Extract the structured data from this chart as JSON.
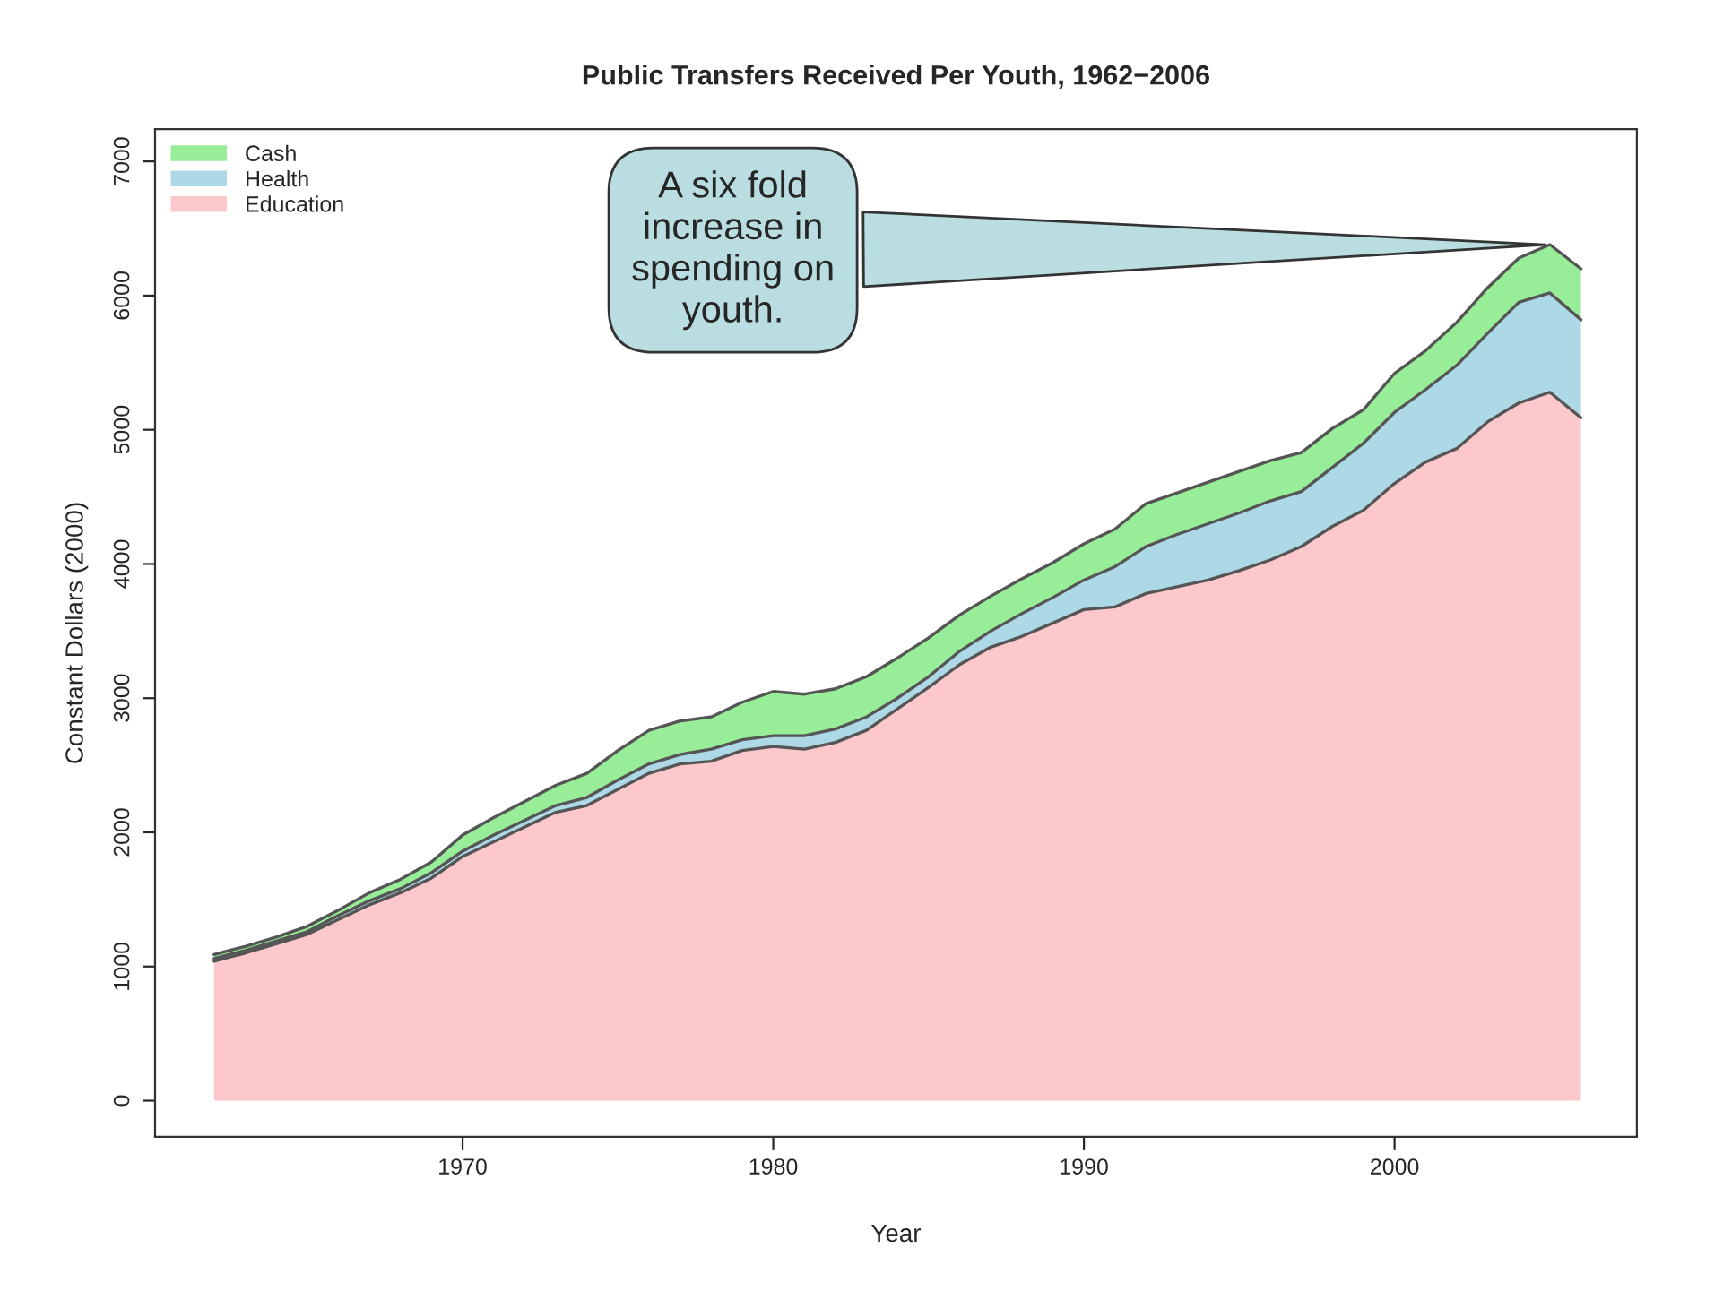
{
  "chart_data": {
    "type": "area",
    "stacked": true,
    "title": "Public Transfers Received Per Youth, 1962−2006",
    "xlabel": "Year",
    "ylabel": "Constant Dollars (2000)",
    "x": [
      1962,
      1963,
      1964,
      1965,
      1966,
      1967,
      1968,
      1969,
      1970,
      1971,
      1972,
      1973,
      1974,
      1975,
      1976,
      1977,
      1978,
      1979,
      1980,
      1981,
      1982,
      1983,
      1984,
      1985,
      1986,
      1987,
      1988,
      1989,
      1990,
      1991,
      1992,
      1993,
      1994,
      1995,
      1996,
      1997,
      1998,
      1999,
      2000,
      2001,
      2002,
      2003,
      2004,
      2005,
      2006
    ],
    "series": [
      {
        "name": "Education",
        "color": "#fcc8cb",
        "values": [
          1040,
          1100,
          1170,
          1240,
          1350,
          1460,
          1550,
          1660,
          1820,
          1930,
          2040,
          2150,
          2200,
          2320,
          2440,
          2510,
          2530,
          2610,
          2640,
          2620,
          2670,
          2760,
          2920,
          3080,
          3250,
          3380,
          3460,
          3560,
          3660,
          3680,
          3780,
          3830,
          3880,
          3950,
          4030,
          4130,
          4280,
          4400,
          4600,
          4760,
          4860,
          5060,
          5200,
          5280,
          5090
        ]
      },
      {
        "name": "Health",
        "color": "#add8e6",
        "values": [
          20,
          20,
          20,
          20,
          30,
          30,
          30,
          40,
          40,
          50,
          50,
          50,
          60,
          70,
          70,
          70,
          90,
          80,
          80,
          100,
          100,
          100,
          80,
          80,
          100,
          120,
          170,
          190,
          220,
          300,
          350,
          390,
          420,
          430,
          440,
          410,
          440,
          500,
          530,
          540,
          620,
          660,
          750,
          740,
          730
        ]
      },
      {
        "name": "Cash",
        "color": "#98ee98",
        "values": [
          30,
          30,
          30,
          40,
          40,
          60,
          70,
          80,
          120,
          130,
          140,
          150,
          180,
          220,
          250,
          250,
          240,
          280,
          330,
          310,
          300,
          300,
          300,
          290,
          270,
          260,
          260,
          260,
          270,
          280,
          320,
          310,
          310,
          310,
          300,
          290,
          290,
          250,
          290,
          290,
          320,
          340,
          330,
          360,
          380
        ]
      }
    ],
    "xlim": [
      1960.1,
      2007.8
    ],
    "ylim": [
      -270,
      7240
    ],
    "xticks": [
      1970,
      1980,
      1990,
      2000
    ],
    "yticks": [
      0,
      1000,
      2000,
      3000,
      4000,
      5000,
      6000,
      7000
    ],
    "grid": false,
    "legend": "top left",
    "annotations": [
      {
        "text": "A six fold\nincrease in\nspending on\nyouth.",
        "x": 2005,
        "y": 6380
      }
    ]
  }
}
